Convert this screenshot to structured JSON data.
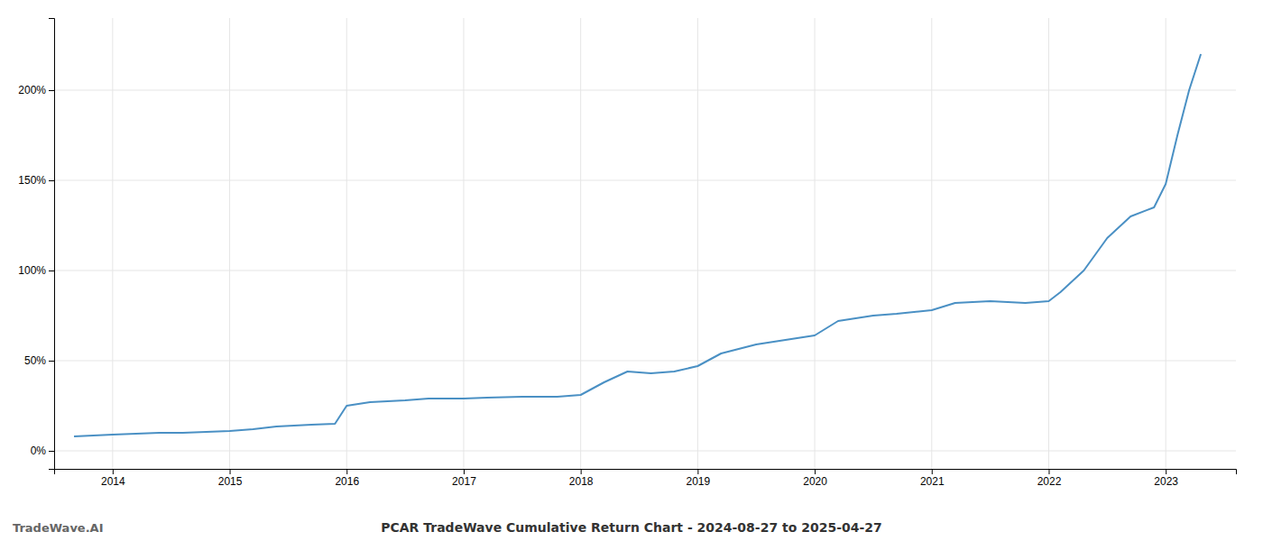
{
  "chart_data": {
    "type": "line",
    "title": "PCAR TradeWave Cumulative Return Chart - 2024-08-27 to 2025-04-27",
    "annotations": [
      "TradeWave.AI"
    ],
    "color": "#4a90c4",
    "x": [
      2013.67,
      2014.0,
      2014.2,
      2014.4,
      2014.6,
      2014.8,
      2015.0,
      2015.2,
      2015.4,
      2015.7,
      2015.9,
      2016.0,
      2016.2,
      2016.5,
      2016.7,
      2017.0,
      2017.2,
      2017.5,
      2017.8,
      2018.0,
      2018.2,
      2018.4,
      2018.6,
      2018.8,
      2019.0,
      2019.2,
      2019.5,
      2019.8,
      2020.0,
      2020.2,
      2020.5,
      2020.7,
      2021.0,
      2021.2,
      2021.5,
      2021.8,
      2022.0,
      2022.1,
      2022.3,
      2022.5,
      2022.7,
      2022.9,
      2023.0,
      2023.1,
      2023.2,
      2023.3
    ],
    "values": [
      8,
      9,
      9.5,
      10,
      10,
      10.5,
      11,
      12,
      13.5,
      14.5,
      15,
      25,
      27,
      28,
      29,
      29,
      29.5,
      30,
      30,
      31,
      38,
      44,
      43,
      44,
      47,
      54,
      59,
      62,
      64,
      72,
      75,
      76,
      78,
      82,
      83,
      82,
      83,
      88,
      100,
      118,
      130,
      135,
      148,
      175,
      200,
      220
    ],
    "xlim": [
      2013.5,
      2023.6
    ],
    "xticks": [
      2014,
      2015,
      2016,
      2017,
      2018,
      2019,
      2020,
      2021,
      2022,
      2023
    ],
    "ylim": [
      -10,
      240
    ],
    "yticks": [
      {
        "value": 0,
        "label": "0%"
      },
      {
        "value": 50,
        "label": "50%"
      },
      {
        "value": 100,
        "label": "100%"
      },
      {
        "value": 150,
        "label": "150%"
      },
      {
        "value": 200,
        "label": "200%"
      }
    ],
    "grid": true
  }
}
